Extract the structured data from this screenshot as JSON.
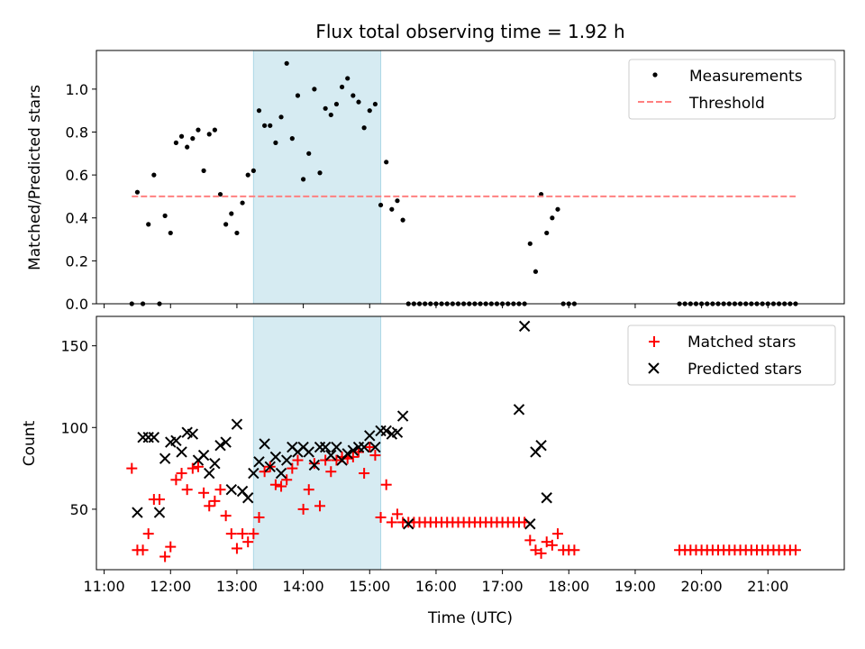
{
  "chart_data": [
    {
      "type": "scatter",
      "title": "Flux total observing time = 1.92 h",
      "xlabel": "",
      "ylabel": "Matched/Predicted stars",
      "xlim": [
        "10:53",
        "22:09"
      ],
      "ylim": [
        0,
        1.18
      ],
      "yticks": [
        0.0,
        0.2,
        0.4,
        0.6,
        0.8,
        1.0
      ],
      "ytick_labels": [
        "0.0",
        "0.2",
        "0.4",
        "0.6",
        "0.8",
        "1.0"
      ],
      "xticks": [
        "11:00",
        "12:00",
        "13:00",
        "14:00",
        "15:00",
        "16:00",
        "17:00",
        "18:00",
        "19:00",
        "20:00",
        "21:00"
      ],
      "xtick_labels_visible": false,
      "highlight": {
        "x": [
          "13:15",
          "15:10"
        ],
        "color": "#add8e6"
      },
      "legend": "upper right",
      "series": [
        {
          "name": "Measurements",
          "marker": "dot",
          "color": "#000000",
          "x": [
            "11:25",
            "11:30",
            "11:35",
            "11:40",
            "11:45",
            "11:50",
            "11:55",
            "12:00",
            "12:05",
            "12:10",
            "12:15",
            "12:20",
            "12:25",
            "12:30",
            "12:35",
            "12:40",
            "12:45",
            "12:50",
            "12:55",
            "13:00",
            "13:05",
            "13:10",
            "13:15",
            "13:20",
            "13:25",
            "13:30",
            "13:35",
            "13:40",
            "13:45",
            "13:50",
            "13:55",
            "14:00",
            "14:05",
            "14:10",
            "14:15",
            "14:20",
            "14:25",
            "14:30",
            "14:35",
            "14:40",
            "14:45",
            "14:50",
            "14:55",
            "15:00",
            "15:05",
            "15:10",
            "15:15",
            "15:20",
            "15:25",
            "15:30",
            "15:35",
            "15:40",
            "15:45",
            "15:50",
            "15:55",
            "16:00",
            "16:05",
            "16:10",
            "16:15",
            "16:20",
            "16:25",
            "16:30",
            "16:35",
            "16:40",
            "16:45",
            "16:50",
            "16:55",
            "17:00",
            "17:05",
            "17:10",
            "17:15",
            "17:20",
            "17:25",
            "17:30",
            "17:35",
            "17:40",
            "17:45",
            "17:50",
            "17:55",
            "18:00",
            "18:05",
            "19:40",
            "19:45",
            "19:50",
            "19:55",
            "20:00",
            "20:05",
            "20:10",
            "20:15",
            "20:20",
            "20:25",
            "20:30",
            "20:35",
            "20:40",
            "20:45",
            "20:50",
            "20:55",
            "21:00",
            "21:05",
            "21:10",
            "21:15",
            "21:20",
            "21:25"
          ],
          "y": [
            0.0,
            0.52,
            0.0,
            0.37,
            0.6,
            0.0,
            0.41,
            0.33,
            0.75,
            0.78,
            0.73,
            0.77,
            0.81,
            0.62,
            0.79,
            0.81,
            0.51,
            0.37,
            0.42,
            0.33,
            0.47,
            0.6,
            0.62,
            0.9,
            0.83,
            0.83,
            0.75,
            0.87,
            1.12,
            0.77,
            0.97,
            0.58,
            0.7,
            1.0,
            0.61,
            0.91,
            0.88,
            0.93,
            1.01,
            1.05,
            0.97,
            0.94,
            0.82,
            0.9,
            0.93,
            0.46,
            0.66,
            0.44,
            0.48,
            0.39,
            0.0,
            0.0,
            0.0,
            0.0,
            0.0,
            0.0,
            0.0,
            0.0,
            0.0,
            0.0,
            0.0,
            0.0,
            0.0,
            0.0,
            0.0,
            0.0,
            0.0,
            0.0,
            0.0,
            0.0,
            0.0,
            0.0,
            0.28,
            0.15,
            0.51,
            0.33,
            0.4,
            0.44,
            0.0,
            0.0,
            0.0,
            0.0,
            0.0,
            0.0,
            0.0,
            0.0,
            0.0,
            0.0,
            0.0,
            0.0,
            0.0,
            0.0,
            0.0,
            0.0,
            0.0,
            0.0,
            0.0,
            0.0,
            0.0,
            0.0,
            0.0,
            0.0,
            0.0
          ]
        },
        {
          "name": "Threshold",
          "type": "line",
          "style": "dashed",
          "color": "#ff8080",
          "x": [
            "11:25",
            "21:25"
          ],
          "y": [
            0.5,
            0.5
          ]
        }
      ]
    },
    {
      "type": "scatter",
      "title": "",
      "xlabel": "Time (UTC)",
      "ylabel": "Count",
      "xlim": [
        "10:53",
        "22:09"
      ],
      "ylim": [
        13,
        168
      ],
      "yticks": [
        50,
        100,
        150
      ],
      "ytick_labels": [
        "50",
        "100",
        "150"
      ],
      "xticks": [
        "11:00",
        "12:00",
        "13:00",
        "14:00",
        "15:00",
        "16:00",
        "17:00",
        "18:00",
        "19:00",
        "20:00",
        "21:00"
      ],
      "xtick_labels": [
        "11:00",
        "12:00",
        "13:00",
        "14:00",
        "15:00",
        "16:00",
        "17:00",
        "18:00",
        "19:00",
        "20:00",
        "21:00"
      ],
      "highlight": {
        "x": [
          "13:15",
          "15:10"
        ],
        "color": "#add8e6"
      },
      "legend": "upper right",
      "series": [
        {
          "name": "Matched stars",
          "marker": "plus",
          "color": "#ff0000",
          "x": [
            "11:25",
            "11:30",
            "11:35",
            "11:40",
            "11:45",
            "11:50",
            "11:55",
            "12:00",
            "12:05",
            "12:10",
            "12:15",
            "12:20",
            "12:25",
            "12:30",
            "12:35",
            "12:40",
            "12:45",
            "12:50",
            "12:55",
            "13:00",
            "13:05",
            "13:10",
            "13:15",
            "13:20",
            "13:25",
            "13:30",
            "13:35",
            "13:40",
            "13:45",
            "13:50",
            "13:55",
            "14:00",
            "14:05",
            "14:10",
            "14:15",
            "14:20",
            "14:25",
            "14:30",
            "14:35",
            "14:40",
            "14:45",
            "14:50",
            "14:55",
            "15:00",
            "15:05",
            "15:10",
            "15:15",
            "15:20",
            "15:25",
            "15:30",
            "15:35",
            "15:40",
            "15:45",
            "15:50",
            "15:55",
            "16:00",
            "16:05",
            "16:10",
            "16:15",
            "16:20",
            "16:25",
            "16:30",
            "16:35",
            "16:40",
            "16:45",
            "16:50",
            "16:55",
            "17:00",
            "17:05",
            "17:10",
            "17:15",
            "17:20",
            "17:25",
            "17:30",
            "17:35",
            "17:40",
            "17:45",
            "17:50",
            "17:55",
            "18:00",
            "18:05",
            "19:40",
            "19:45",
            "19:50",
            "19:55",
            "20:00",
            "20:05",
            "20:10",
            "20:15",
            "20:20",
            "20:25",
            "20:30",
            "20:35",
            "20:40",
            "20:45",
            "20:50",
            "20:55",
            "21:00",
            "21:05",
            "21:10",
            "21:15",
            "21:20",
            "21:25"
          ],
          "y": [
            75,
            25,
            25,
            35,
            56,
            56,
            21,
            27,
            68,
            72,
            62,
            75,
            76,
            60,
            52,
            55,
            62,
            46,
            35,
            26,
            35,
            30,
            35,
            45,
            73,
            76,
            65,
            64,
            68,
            75,
            80,
            50,
            62,
            78,
            52,
            80,
            73,
            80,
            82,
            81,
            82,
            85,
            72,
            88,
            83,
            45,
            65,
            42,
            47,
            42,
            42,
            42,
            42,
            42,
            42,
            42,
            42,
            42,
            42,
            42,
            42,
            42,
            42,
            42,
            42,
            42,
            42,
            42,
            42,
            42,
            42,
            42,
            31,
            25,
            23,
            30,
            28,
            35,
            25,
            25,
            25,
            25,
            25,
            25,
            25,
            25,
            25,
            25,
            25,
            25,
            25,
            25,
            25,
            25,
            25,
            25,
            25,
            25,
            25,
            25,
            25,
            25,
            25
          ]
        },
        {
          "name": "Predicted stars",
          "marker": "x",
          "color": "#000000",
          "x": [
            "11:30",
            "11:35",
            "11:40",
            "11:45",
            "11:50",
            "11:55",
            "12:00",
            "12:05",
            "12:10",
            "12:15",
            "12:20",
            "12:25",
            "12:30",
            "12:35",
            "12:40",
            "12:45",
            "12:50",
            "12:55",
            "13:00",
            "13:05",
            "13:10",
            "13:15",
            "13:20",
            "13:25",
            "13:30",
            "13:35",
            "13:40",
            "13:45",
            "13:50",
            "13:55",
            "14:00",
            "14:05",
            "14:10",
            "14:15",
            "14:20",
            "14:25",
            "14:30",
            "14:35",
            "14:40",
            "14:45",
            "14:50",
            "14:55",
            "15:00",
            "15:05",
            "15:10",
            "15:15",
            "15:20",
            "15:25",
            "15:30",
            "15:35",
            "17:15",
            "17:20",
            "17:25",
            "17:30",
            "17:35",
            "17:40"
          ],
          "y": [
            48,
            94,
            94,
            94,
            48,
            81,
            91,
            92,
            85,
            97,
            96,
            80,
            83,
            72,
            78,
            89,
            91,
            62,
            102,
            61,
            57,
            72,
            79,
            90,
            76,
            82,
            72,
            80,
            88,
            85,
            88,
            85,
            77,
            88,
            88,
            83,
            88,
            80,
            84,
            86,
            88,
            88,
            95,
            88,
            98,
            98,
            96,
            97,
            107,
            41,
            111,
            162,
            41,
            85,
            89,
            57
          ]
        }
      ]
    }
  ]
}
